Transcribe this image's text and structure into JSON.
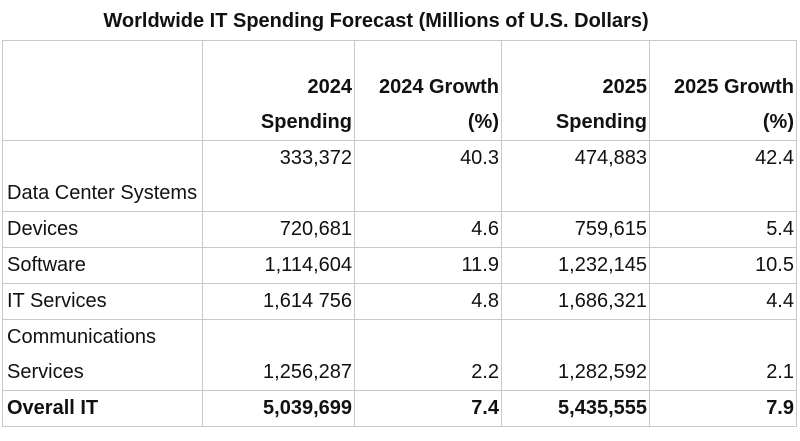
{
  "chart_data": {
    "type": "table",
    "title": "Worldwide IT Spending Forecast (Millions of U.S. Dollars)",
    "columns": [
      {
        "line1": "",
        "line2": ""
      },
      {
        "line1": "2024",
        "line2": "Spending"
      },
      {
        "line1": "2024 Growth",
        "line2": "(%)"
      },
      {
        "line1": "2025",
        "line2": "Spending"
      },
      {
        "line1": "2025 Growth",
        "line2": "(%)"
      }
    ],
    "rows": [
      {
        "label": "Data Center Systems",
        "spend_2024": "333,372",
        "growth_2024": "40.3",
        "spend_2025": "474,883",
        "growth_2025": "42.4"
      },
      {
        "label": "Devices",
        "spend_2024": "720,681",
        "growth_2024": "4.6",
        "spend_2025": "759,615",
        "growth_2025": "5.4"
      },
      {
        "label": "Software",
        "spend_2024": "1,114,604",
        "growth_2024": "11.9",
        "spend_2025": "1,232,145",
        "growth_2025": "10.5"
      },
      {
        "label": "IT Services",
        "spend_2024": "1,614 756",
        "growth_2024": "4.8",
        "spend_2025": "1,686,321",
        "growth_2025": "4.4"
      },
      {
        "label": "Communications Services",
        "spend_2024": "1,256,287",
        "growth_2024": "2.2",
        "spend_2025": "1,282,592",
        "growth_2025": "2.1"
      },
      {
        "label": "Overall IT",
        "spend_2024": "5,039,699",
        "growth_2024": "7.4",
        "spend_2025": "5,435,555",
        "growth_2025": "7.9"
      }
    ]
  }
}
